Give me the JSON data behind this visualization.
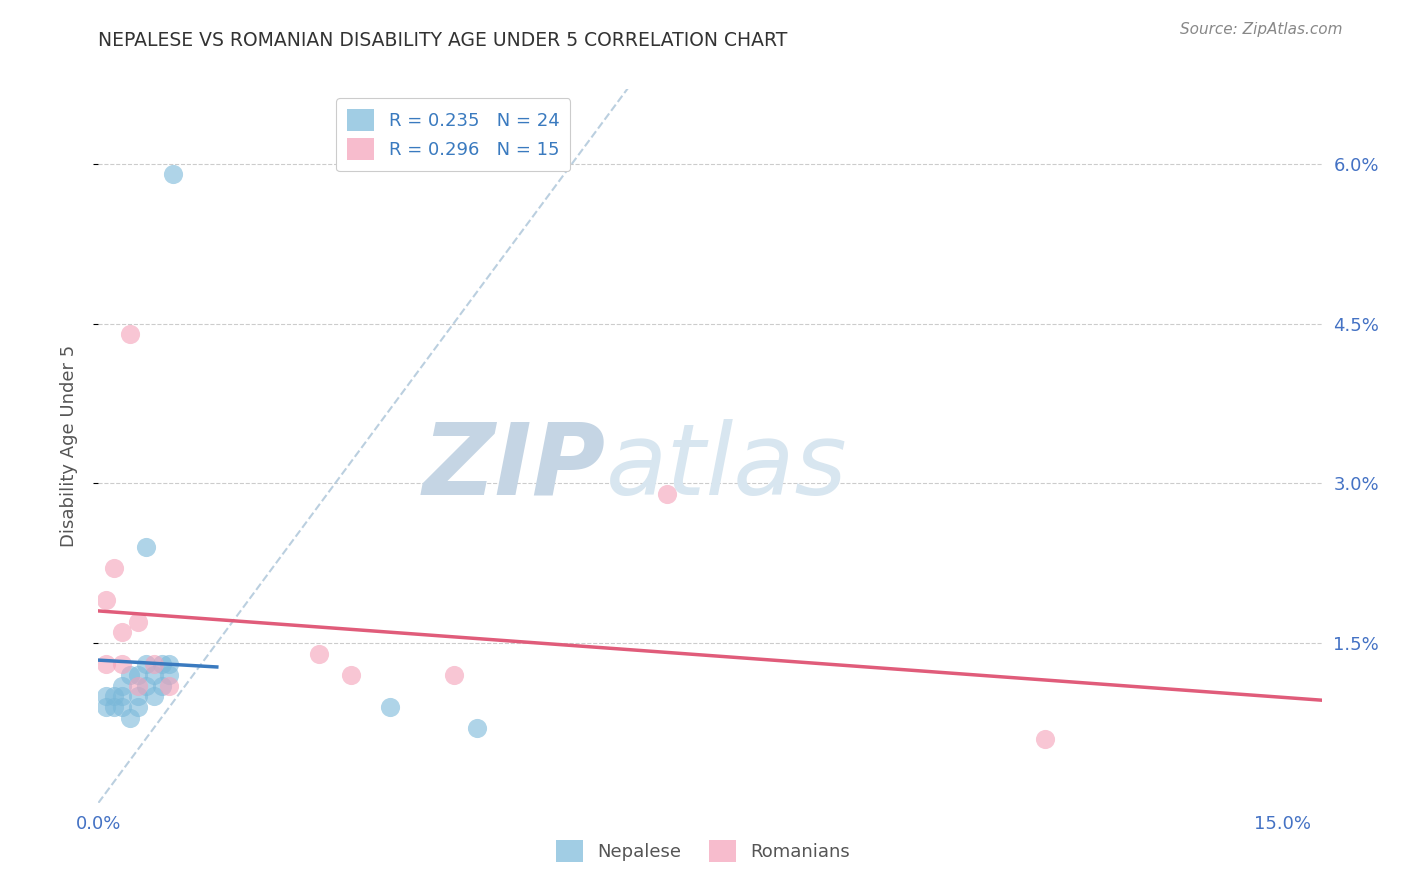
{
  "title": "NEPALESE VS ROMANIAN DISABILITY AGE UNDER 5 CORRELATION CHART",
  "source": "Source: ZipAtlas.com",
  "ylabel": "Disability Age Under 5",
  "xlim": [
    0.0,
    0.155
  ],
  "ylim": [
    0.0,
    0.067
  ],
  "xtick_positions": [
    0.0,
    0.03,
    0.06,
    0.09,
    0.12,
    0.15
  ],
  "xtick_labels": [
    "0.0%",
    "",
    "",
    "",
    "",
    "15.0%"
  ],
  "ytick_positions": [
    0.015,
    0.03,
    0.045,
    0.06
  ],
  "ytick_labels": [
    "1.5%",
    "3.0%",
    "4.5%",
    "6.0%"
  ],
  "nepalese_x": [
    0.0095,
    0.001,
    0.001,
    0.002,
    0.002,
    0.003,
    0.003,
    0.003,
    0.004,
    0.004,
    0.005,
    0.005,
    0.005,
    0.006,
    0.006,
    0.006,
    0.007,
    0.007,
    0.008,
    0.008,
    0.009,
    0.009,
    0.037,
    0.048
  ],
  "nepalese_y": [
    0.059,
    0.009,
    0.01,
    0.009,
    0.01,
    0.009,
    0.01,
    0.011,
    0.008,
    0.012,
    0.009,
    0.01,
    0.012,
    0.011,
    0.013,
    0.024,
    0.01,
    0.012,
    0.011,
    0.013,
    0.012,
    0.013,
    0.009,
    0.007
  ],
  "romanian_x": [
    0.001,
    0.001,
    0.002,
    0.003,
    0.003,
    0.004,
    0.005,
    0.005,
    0.007,
    0.009,
    0.028,
    0.032,
    0.045,
    0.072,
    0.12
  ],
  "romanian_y": [
    0.013,
    0.019,
    0.022,
    0.013,
    0.016,
    0.044,
    0.011,
    0.017,
    0.013,
    0.011,
    0.014,
    0.012,
    0.012,
    0.029,
    0.006
  ],
  "nepalese_color": "#7ab8d9",
  "romanian_color": "#f4a0b8",
  "nepalese_line_color": "#3a7abf",
  "romanian_line_color": "#e05c7a",
  "dashed_line_color": "#aac4d8",
  "nepalese_R": 0.235,
  "nepalese_N": 24,
  "romanian_R": 0.296,
  "romanian_N": 15,
  "legend_label_nepalese": "Nepalese",
  "legend_label_romanian": "Romanians",
  "background_color": "#ffffff",
  "grid_color": "#cccccc",
  "title_color": "#333333",
  "axis_label_color": "#4472c4",
  "source_color": "#888888",
  "ylabel_color": "#555555",
  "watermark_color": "#cdd8e3",
  "watermark_zip": "ZIP",
  "watermark_atlas": "atlas"
}
